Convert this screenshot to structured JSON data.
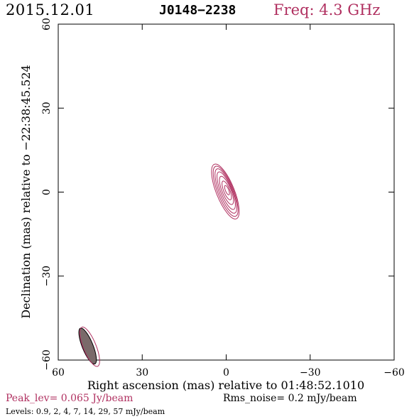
{
  "header": {
    "date": "2015.12.01",
    "source": "J0148−2238",
    "frequency": "Freq: 4.3 GHz"
  },
  "footer": {
    "peak": "Peak_lev=  0.065 Jy/beam",
    "rms": "Rms_noise=  0.2 mJy/beam",
    "levels": "Levels: 0.9,   2,   4,   7,  14,  29,  57 mJy/beam"
  },
  "colors": {
    "contour": "#b03060",
    "beam_fill": "#7a6a6a",
    "text": "#000000"
  },
  "chart_data": {
    "type": "contour",
    "xlabel": "Right ascension (mas) relative to 01:48:52.1010",
    "ylabel": "Declination (mas) relative to −22:38:45.524",
    "xlim": [
      60,
      -60
    ],
    "ylim": [
      -60,
      60
    ],
    "xticks": [
      60,
      30,
      0,
      -30,
      -60
    ],
    "yticks": [
      -60,
      -30,
      0,
      30,
      60
    ],
    "xtick_labels": [
      "60",
      "30",
      "0",
      "−30",
      "−60"
    ],
    "ytick_labels": [
      "−60",
      "−30",
      "0",
      "30",
      "60"
    ],
    "levels_mJy": [
      0.9,
      2,
      4,
      7,
      14,
      29,
      57
    ],
    "peak_Jy_per_beam": 0.065,
    "rms_mJy_per_beam": 0.2,
    "contours": [
      {
        "level": 0.9,
        "cx": 0.3,
        "cy": 0.2,
        "a": 10.5,
        "b": 3.2,
        "angle": 68
      },
      {
        "level": 2,
        "cx": 0.2,
        "cy": 0.3,
        "a": 9.6,
        "b": 2.8,
        "angle": 68
      },
      {
        "level": 4,
        "cx": 0.1,
        "cy": 0.4,
        "a": 8.5,
        "b": 2.4,
        "angle": 68
      },
      {
        "level": 7,
        "cx": 0.0,
        "cy": 0.5,
        "a": 7.2,
        "b": 2.0,
        "angle": 68
      },
      {
        "level": 14,
        "cx": -0.1,
        "cy": 0.6,
        "a": 5.4,
        "b": 1.6,
        "angle": 68
      },
      {
        "level": 29,
        "cx": -0.2,
        "cy": 0.6,
        "a": 3.6,
        "b": 1.1,
        "angle": 68
      },
      {
        "level": 57,
        "cx": -0.3,
        "cy": 0.7,
        "a": 1.8,
        "b": 0.6,
        "angle": 68
      }
    ],
    "beam": {
      "cx": 49.5,
      "cy": -55,
      "major": 4.3,
      "minor": 1.2,
      "angle": 68
    }
  }
}
